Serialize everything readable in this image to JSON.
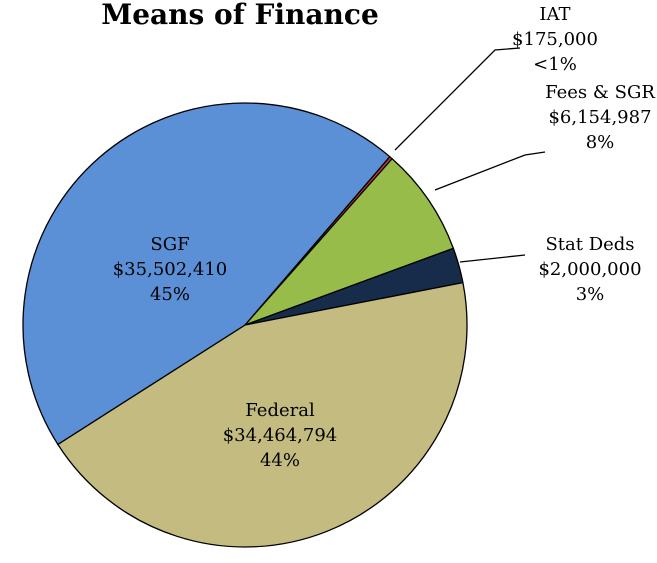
{
  "chart_data": {
    "type": "pie",
    "title": "Means of Finance",
    "categories": [
      "IAT",
      "Fees & SGR",
      "Stat Deds",
      "Federal",
      "SGF"
    ],
    "values": [
      175000,
      6154987,
      2000000,
      34464794,
      35502410
    ],
    "value_labels": [
      "$175,000",
      "$6,154,987",
      "$2,000,000",
      "$34,464,794",
      "$35,502,410"
    ],
    "percent_labels": [
      "<1%",
      "8%",
      "3%",
      "44%",
      "45%"
    ],
    "colors": [
      "#c0392b",
      "#97bc4a",
      "#172c4a",
      "#c4bb80",
      "#5b8fd6"
    ]
  }
}
